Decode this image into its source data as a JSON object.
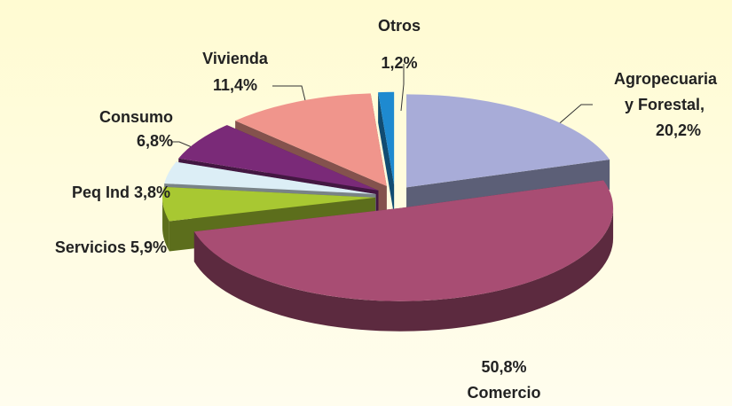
{
  "chart_data": {
    "type": "pie",
    "categories": [
      "Agropecuaria y Forestal,",
      "Comercio",
      "Servicios",
      "Peq Ind",
      "Consumo",
      "Vivienda",
      "Otros"
    ],
    "values": [
      20.2,
      50.8,
      5.9,
      3.8,
      6.8,
      11.4,
      1.2
    ],
    "value_labels": [
      "20,2%",
      "50,8%",
      "5,9%",
      "3,8%",
      "6,8%",
      "11,4%",
      "1,2%"
    ],
    "colors": [
      "#a8acd8",
      "#a84d73",
      "#a8c832",
      "#dceef6",
      "#7a2a78",
      "#f0958c",
      "#1e8ad0"
    ]
  }
}
